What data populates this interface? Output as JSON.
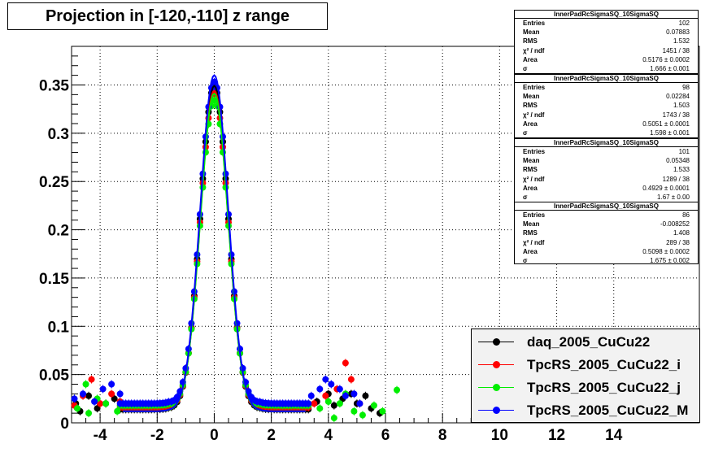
{
  "title": "Projection in [-120,-110] z range",
  "colors": {
    "black": "#000000",
    "red": "#ff0000",
    "green": "#00ee00",
    "blue": "#0000ff"
  },
  "chart_data": {
    "type": "scatter",
    "xlim": [
      -5,
      17.0
    ],
    "ylim": [
      0,
      0.39
    ],
    "x_ticks": [
      "-4",
      "-2",
      "0",
      "2",
      "4",
      "6",
      "8",
      "10",
      "12",
      "14"
    ],
    "x_tick_values": [
      -4,
      -2,
      0,
      2,
      4,
      6,
      8,
      10,
      12,
      14
    ],
    "y_ticks": [
      "0",
      "0.05",
      "0.1",
      "0.15",
      "0.2",
      "0.25",
      "0.3",
      "0.35"
    ],
    "y_tick_values": [
      0,
      0.05,
      0.1,
      0.15,
      0.2,
      0.25,
      0.3,
      0.35
    ],
    "grid": true,
    "legend_position": "bottom-right",
    "series": [
      {
        "name": "daq_2005_CuCu22",
        "color": "black",
        "peak": 0.362,
        "sigma": 0.49,
        "tail": [
          [
            -4.85,
            0.02
          ],
          [
            -4.7,
            0.012
          ],
          [
            -4.4,
            0.028
          ],
          [
            -4.1,
            0.015
          ],
          [
            -3.8,
            0.02
          ],
          [
            -3.5,
            0.025
          ],
          [
            -3.2,
            0.018
          ],
          [
            3.6,
            0.022
          ],
          [
            4.0,
            0.03
          ],
          [
            4.2,
            0.018
          ],
          [
            4.5,
            0.025
          ],
          [
            4.8,
            0.03
          ],
          [
            5.0,
            0.02
          ],
          [
            5.3,
            0.028
          ],
          [
            5.5,
            0.015
          ],
          [
            5.8,
            0.01
          ]
        ],
        "fit": [
          0.361,
          0.49
        ]
      },
      {
        "name": "TpcRS_2005_CuCu22_i",
        "color": "red",
        "peak": 0.357,
        "sigma": 0.49,
        "tail": [
          [
            -4.9,
            0.018
          ],
          [
            -4.6,
            0.028
          ],
          [
            -4.3,
            0.045
          ],
          [
            -4.0,
            0.02
          ],
          [
            -3.6,
            0.03
          ],
          [
            -3.3,
            0.022
          ],
          [
            3.5,
            0.02
          ],
          [
            3.9,
            0.028
          ],
          [
            4.3,
            0.035
          ],
          [
            4.6,
            0.062
          ],
          [
            4.8,
            0.045
          ],
          [
            5.1,
            0.02
          ]
        ],
        "fit": [
          0.356,
          0.49
        ]
      },
      {
        "name": "TpcRS_2005_CuCu22_j",
        "color": "green",
        "peak": 0.352,
        "sigma": 0.49,
        "tail": [
          [
            -4.8,
            0.015
          ],
          [
            -4.5,
            0.04
          ],
          [
            -4.4,
            0.01
          ],
          [
            -4.1,
            0.025
          ],
          [
            -3.8,
            0.02
          ],
          [
            -3.4,
            0.012
          ],
          [
            3.7,
            0.015
          ],
          [
            4.0,
            0.022
          ],
          [
            4.2,
            0.005
          ],
          [
            4.4,
            0.02
          ],
          [
            4.6,
            0.03
          ],
          [
            4.9,
            0.012
          ],
          [
            5.2,
            0.008
          ],
          [
            5.6,
            0.018
          ],
          [
            5.9,
            0.012
          ],
          [
            6.4,
            0.034
          ]
        ],
        "fit": [
          0.353,
          0.49
        ]
      },
      {
        "name": "TpcRS_2005_CuCu22_M",
        "color": "blue",
        "peak": 0.373,
        "sigma": 0.49,
        "tail": [
          [
            -4.9,
            0.025
          ],
          [
            -4.6,
            0.03
          ],
          [
            -4.2,
            0.022
          ],
          [
            -3.9,
            0.035
          ],
          [
            -3.6,
            0.04
          ],
          [
            -3.3,
            0.03
          ],
          [
            3.4,
            0.028
          ],
          [
            3.7,
            0.035
          ],
          [
            3.9,
            0.045
          ],
          [
            4.1,
            0.04
          ],
          [
            4.4,
            0.035
          ],
          [
            4.6,
            0.028
          ],
          [
            4.9,
            0.03
          ],
          [
            5.1,
            0.02
          ]
        ],
        "fit": [
          0.372,
          0.49
        ]
      }
    ]
  },
  "stats": [
    {
      "title": "InnerPadRcSigmaSQ_10SigmaSQ",
      "rows": [
        [
          "Entries",
          "102"
        ],
        [
          "Mean",
          "0.07883"
        ],
        [
          "RMS",
          "1.532"
        ],
        [
          "χ² / ndf",
          "1451 / 38"
        ],
        [
          "Area",
          "0.5176 ± 0.0002"
        ],
        [
          "σ",
          "1.666 ± 0.001"
        ]
      ]
    },
    {
      "title": "InnerPadRcSigmaSQ_10SigmaSQ",
      "rows": [
        [
          "Entries",
          "98"
        ],
        [
          "Mean",
          "0.02284"
        ],
        [
          "RMS",
          "1.503"
        ],
        [
          "χ² / ndf",
          "1743 / 38"
        ],
        [
          "Area",
          "0.5051 ± 0.0001"
        ],
        [
          "σ",
          "1.598 ± 0.001"
        ]
      ]
    },
    {
      "title": "InnerPadRcSigmaSQ_10SigmaSQ",
      "rows": [
        [
          "Entries",
          "101"
        ],
        [
          "Mean",
          "0.05348"
        ],
        [
          "RMS",
          "1.533"
        ],
        [
          "χ² / ndf",
          "1289 / 38"
        ],
        [
          "Area",
          "0.4929 ± 0.0001"
        ],
        [
          "σ",
          "1.67 ± 0.00"
        ]
      ]
    },
    {
      "title": "InnerPadRcSigmaSQ_10SigmaSQ",
      "rows": [
        [
          "Entries",
          "86"
        ],
        [
          "Mean",
          "-0.008252"
        ],
        [
          "RMS",
          "1.408"
        ],
        [
          "χ² / ndf",
          "289 / 38"
        ],
        [
          "Area",
          "0.5098 ± 0.0002"
        ],
        [
          "σ",
          "1.675 ± 0.002"
        ]
      ]
    }
  ]
}
